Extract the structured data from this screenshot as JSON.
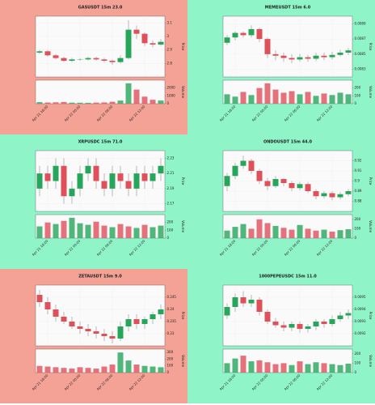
{
  "chart_data": [
    {
      "type": "candlestick",
      "title": "GASUSDT 15m 23.0",
      "background": "#f4a296",
      "up_color": "#26a65b",
      "down_color": "#e0505a",
      "grid": true,
      "ylabel": "Price",
      "vlabel": "Volume",
      "categories": [
        null,
        "Apr 21 18:00",
        null,
        null,
        null,
        "Apr 22 00:00",
        null,
        null,
        null,
        "Apr 22 06:00",
        null,
        null,
        null,
        "Apr 22 12:00",
        null,
        null
      ],
      "open": [
        2.88,
        2.89,
        2.86,
        2.84,
        2.82,
        2.83,
        2.83,
        2.84,
        2.83,
        2.82,
        2.81,
        2.84,
        3.05,
        3.02,
        2.95,
        2.94
      ],
      "high": [
        2.9,
        2.9,
        2.87,
        2.85,
        2.84,
        2.84,
        2.85,
        2.85,
        2.84,
        2.83,
        2.86,
        3.12,
        3.08,
        3.03,
        2.97,
        2.98
      ],
      "low": [
        2.87,
        2.85,
        2.83,
        2.81,
        2.81,
        2.82,
        2.82,
        2.82,
        2.81,
        2.79,
        2.8,
        2.83,
        2.98,
        2.93,
        2.92,
        2.93
      ],
      "close": [
        2.89,
        2.86,
        2.84,
        2.82,
        2.83,
        2.83,
        2.84,
        2.83,
        2.82,
        2.81,
        2.84,
        3.05,
        3.02,
        2.95,
        2.94,
        2.96
      ],
      "volume": [
        200,
        150,
        180,
        220,
        130,
        120,
        110,
        140,
        160,
        250,
        400,
        2600,
        1800,
        900,
        500,
        400
      ],
      "ylim": [
        2.7,
        3.15
      ],
      "yticks": [
        2.8,
        2.9,
        3.0,
        3.1
      ],
      "vlim": [
        0,
        3000
      ],
      "vticks": [
        0,
        1000,
        2000
      ]
    },
    {
      "type": "candlestick",
      "title": "MEMEUSDT 15m 6.0",
      "background": "#8ff5c8",
      "up_color": "#26a65b",
      "down_color": "#e0505a",
      "grid": true,
      "ylabel": "Price",
      "vlabel": "Volume",
      "categories": [
        null,
        "Apr 21 18:00",
        null,
        null,
        null,
        "Apr 22 00:00",
        null,
        null,
        null,
        "Apr 22 06:00",
        null,
        null,
        null,
        "Apr 22 12:00",
        null,
        null
      ],
      "open": [
        0.00865,
        0.00872,
        0.00878,
        0.00875,
        0.00883,
        0.0087,
        0.0085,
        0.00848,
        0.00845,
        0.00843,
        0.00846,
        0.00844,
        0.00848,
        0.00846,
        0.00849,
        0.00852
      ],
      "high": [
        0.00875,
        0.0088,
        0.0088,
        0.00888,
        0.00885,
        0.00872,
        0.00855,
        0.00852,
        0.0085,
        0.0085,
        0.00849,
        0.00852,
        0.00852,
        0.00853,
        0.00856,
        0.00858
      ],
      "low": [
        0.00862,
        0.00868,
        0.00872,
        0.00872,
        0.00866,
        0.00845,
        0.00842,
        0.0084,
        0.00838,
        0.0084,
        0.0084,
        0.00841,
        0.00842,
        0.00843,
        0.00847,
        0.00849
      ],
      "close": [
        0.00872,
        0.00878,
        0.00875,
        0.00883,
        0.0087,
        0.0085,
        0.00848,
        0.00845,
        0.00843,
        0.00846,
        0.00844,
        0.00848,
        0.00846,
        0.00849,
        0.00852,
        0.00855
      ],
      "volume": [
        120,
        90,
        150,
        110,
        200,
        260,
        180,
        140,
        160,
        120,
        150,
        100,
        130,
        110,
        140,
        120
      ],
      "ylim": [
        0.0082,
        0.009
      ],
      "yticks": [
        0.0083,
        0.0085,
        0.0087,
        0.0089
      ],
      "vlim": [
        0,
        300
      ],
      "vticks": [
        0,
        100,
        200
      ]
    },
    {
      "type": "candlestick",
      "title": "XRPUSDC 15m 71.0",
      "background": "#8ff5c8",
      "up_color": "#26a65b",
      "down_color": "#e0505a",
      "grid": true,
      "ylabel": "Price",
      "vlabel": "Volume",
      "categories": [
        null,
        "Apr 21 18:00",
        null,
        null,
        null,
        "Apr 22 00:00",
        null,
        null,
        null,
        "Apr 22 06:00",
        null,
        null,
        null,
        "Apr 22 12:00",
        null,
        null
      ],
      "open": [
        2.19,
        2.21,
        2.2,
        2.22,
        2.18,
        2.19,
        2.21,
        2.22,
        2.2,
        2.19,
        2.21,
        2.2,
        2.19,
        2.21,
        2.2,
        2.21
      ],
      "high": [
        2.22,
        2.22,
        2.23,
        2.23,
        2.2,
        2.22,
        2.23,
        2.23,
        2.21,
        2.22,
        2.22,
        2.21,
        2.22,
        2.22,
        2.22,
        2.23
      ],
      "low": [
        2.18,
        2.19,
        2.19,
        2.17,
        2.17,
        2.18,
        2.2,
        2.19,
        2.18,
        2.18,
        2.19,
        2.18,
        2.18,
        2.19,
        2.19,
        2.2
      ],
      "close": [
        2.21,
        2.2,
        2.22,
        2.18,
        2.19,
        2.21,
        2.22,
        2.2,
        2.19,
        2.21,
        2.2,
        2.19,
        2.21,
        2.2,
        2.21,
        2.22
      ],
      "volume": [
        150,
        200,
        180,
        220,
        260,
        190,
        170,
        210,
        160,
        140,
        180,
        150,
        130,
        170,
        140,
        160
      ],
      "ylim": [
        2.16,
        2.24
      ],
      "yticks": [
        2.17,
        2.19,
        2.21,
        2.23
      ],
      "vlim": [
        0,
        300
      ],
      "vticks": [
        0,
        100,
        200
      ]
    },
    {
      "type": "candlestick",
      "title": "ONDOUSDT 15m 44.0",
      "background": "#8ff5c8",
      "up_color": "#26a65b",
      "down_color": "#e0505a",
      "grid": true,
      "ylabel": "Price",
      "vlabel": "Volume",
      "categories": [
        null,
        "Apr 21 18:00",
        null,
        null,
        null,
        "Apr 22 00:00",
        null,
        null,
        null,
        "Apr 22 06:00",
        null,
        null,
        null,
        "Apr 22 12:00",
        null,
        null
      ],
      "open": [
        0.895,
        0.905,
        0.915,
        0.92,
        0.91,
        0.9,
        0.895,
        0.902,
        0.898,
        0.893,
        0.897,
        0.89,
        0.885,
        0.888,
        0.884,
        0.887
      ],
      "high": [
        0.908,
        0.918,
        0.925,
        0.922,
        0.912,
        0.903,
        0.905,
        0.903,
        0.9,
        0.899,
        0.899,
        0.892,
        0.89,
        0.89,
        0.889,
        0.892
      ],
      "low": [
        0.89,
        0.902,
        0.912,
        0.907,
        0.897,
        0.891,
        0.893,
        0.895,
        0.89,
        0.891,
        0.888,
        0.882,
        0.883,
        0.881,
        0.882,
        0.885
      ],
      "close": [
        0.905,
        0.915,
        0.92,
        0.91,
        0.9,
        0.895,
        0.902,
        0.898,
        0.893,
        0.897,
        0.89,
        0.885,
        0.888,
        0.884,
        0.887,
        0.89
      ],
      "volume": [
        80,
        120,
        150,
        100,
        200,
        160,
        130,
        110,
        90,
        140,
        100,
        80,
        90,
        70,
        85,
        95
      ],
      "ylim": [
        0.87,
        0.93
      ],
      "yticks": [
        0.88,
        0.89,
        0.9,
        0.91,
        0.92
      ],
      "vlim": [
        0,
        250
      ],
      "vticks": [
        0,
        100,
        200
      ]
    },
    {
      "type": "candlestick",
      "title": "ZETAUSDT 15m 9.0",
      "background": "#f4a296",
      "up_color": "#26a65b",
      "down_color": "#e0505a",
      "grid": true,
      "ylabel": "Price",
      "vlabel": "Volume",
      "categories": [
        null,
        "Apr 21 18:00",
        null,
        null,
        null,
        "Apr 22 00:00",
        null,
        null,
        null,
        "Apr 22 06:00",
        null,
        null,
        null,
        "Apr 22 12:00",
        null,
        null
      ],
      "open": [
        0.246,
        0.243,
        0.24,
        0.237,
        0.235,
        0.233,
        0.232,
        0.231,
        0.23,
        0.229,
        0.228,
        0.233,
        0.236,
        0.234,
        0.236,
        0.238
      ],
      "high": [
        0.248,
        0.245,
        0.242,
        0.239,
        0.237,
        0.235,
        0.234,
        0.233,
        0.232,
        0.231,
        0.235,
        0.238,
        0.238,
        0.237,
        0.239,
        0.242
      ],
      "low": [
        0.241,
        0.238,
        0.235,
        0.234,
        0.232,
        0.23,
        0.229,
        0.228,
        0.227,
        0.226,
        0.227,
        0.231,
        0.232,
        0.232,
        0.234,
        0.236
      ],
      "close": [
        0.243,
        0.24,
        0.237,
        0.235,
        0.233,
        0.232,
        0.231,
        0.23,
        0.229,
        0.228,
        0.233,
        0.236,
        0.234,
        0.236,
        0.238,
        0.24
      ],
      "volume": [
        100,
        90,
        80,
        70,
        60,
        80,
        70,
        60,
        90,
        120,
        300,
        180,
        120,
        100,
        90,
        80
      ],
      "ylim": [
        0.225,
        0.25
      ],
      "yticks": [
        0.23,
        0.235,
        0.24,
        0.245
      ],
      "vlim": [
        0,
        350
      ],
      "vticks": [
        0,
        100,
        200,
        300
      ]
    },
    {
      "type": "candlestick",
      "title": "1000PEPEUSDC 15m 11.0",
      "background": "#8ff5c8",
      "up_color": "#26a65b",
      "down_color": "#e0505a",
      "grid": true,
      "ylabel": "Price",
      "vlabel": "Volume",
      "categories": [
        null,
        "Apr 21 18:00",
        null,
        null,
        null,
        "Apr 22 00:00",
        null,
        null,
        null,
        "Apr 22 06:00",
        null,
        null,
        null,
        "Apr 22 12:00",
        null,
        null
      ],
      "open": [
        0.00935,
        0.00942,
        0.0095,
        0.00945,
        0.00948,
        0.00938,
        0.0093,
        0.00927,
        0.00925,
        0.00928,
        0.00924,
        0.00926,
        0.0093,
        0.00928,
        0.00932,
        0.00935
      ],
      "high": [
        0.00945,
        0.00953,
        0.00955,
        0.00952,
        0.0095,
        0.0094,
        0.00933,
        0.0093,
        0.0093,
        0.0093,
        0.00928,
        0.00932,
        0.00932,
        0.00935,
        0.00938,
        0.0094
      ],
      "low": [
        0.00932,
        0.00938,
        0.00942,
        0.00942,
        0.00935,
        0.00928,
        0.00925,
        0.00922,
        0.00922,
        0.00921,
        0.00921,
        0.00923,
        0.00925,
        0.00926,
        0.0093,
        0.00932
      ],
      "close": [
        0.00942,
        0.0095,
        0.00945,
        0.00948,
        0.00938,
        0.0093,
        0.00927,
        0.00925,
        0.00928,
        0.00924,
        0.00926,
        0.0093,
        0.00928,
        0.00932,
        0.00935,
        0.00937
      ],
      "volume": [
        100,
        150,
        180,
        120,
        130,
        110,
        90,
        100,
        80,
        120,
        90,
        110,
        100,
        90,
        80,
        95
      ],
      "ylim": [
        0.0091,
        0.0096
      ],
      "yticks": [
        0.0092,
        0.0093,
        0.0094,
        0.0095
      ],
      "vlim": [
        0,
        250
      ],
      "vticks": [
        0,
        100,
        200
      ]
    }
  ]
}
